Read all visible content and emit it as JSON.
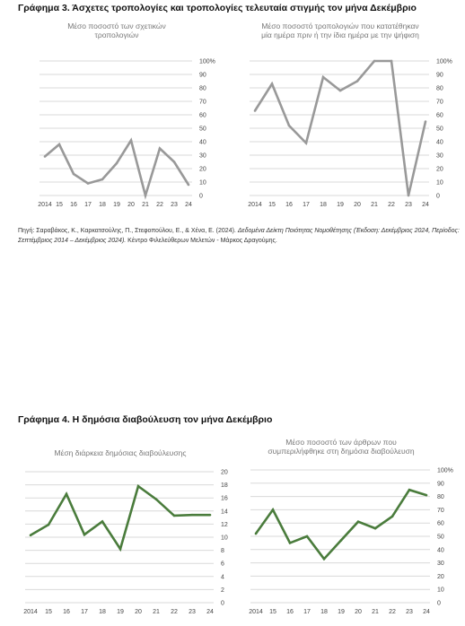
{
  "heading3": "Γράφημα 3. Άσχετες τροπολογίες και τροπολογίες τελευταία στιγμής τον μήνα Δεκέμβριο",
  "source": {
    "prefix": "Πηγή: Σαραβάκος, Κ., Καρκατσούλης, Π., Στεφοπούλου, Ε., & Χένα, Ε. (2024). ",
    "italic": "Δεδομένα Δείκτη Ποιότητας Νομοθέτησης (Έκδοση: Δεκέμβριος 2024, Περίοδος: Σεπτέμβριος 2014 – Δεκέμβριος 2024).",
    "suffix": " Κέντρο Φιλελεύθερων Μελετών - Μάρκος Δραγούμης."
  },
  "heading4": "Γράφημα 4. Η δημόσια διαβούλευση τον μήνα Δεκέμβριο",
  "colors": {
    "gray_line": "#999999",
    "green_line": "#4a7c3c",
    "grid": "#d9d9d9"
  },
  "chart_data": [
    {
      "type": "line",
      "title_lines": [
        "Μέσο ποσοστό των σχετικών",
        "τροπολογιών"
      ],
      "categories": [
        "2014",
        "15",
        "16",
        "17",
        "18",
        "19",
        "20",
        "21",
        "22",
        "23",
        "24"
      ],
      "values": [
        29,
        38,
        16,
        9,
        12,
        24,
        41,
        0,
        35,
        25,
        8
      ],
      "ylim": [
        0,
        100
      ],
      "yticks": [
        "0",
        "10",
        "20",
        "30",
        "40",
        "50",
        "60",
        "70",
        "80",
        "90",
        "100%"
      ],
      "color": "#999999",
      "grid": true
    },
    {
      "type": "line",
      "title_lines": [
        "Μέσο ποσοστό τροπολογιών που κατατέθηκαν",
        "μία ημέρα πριν ή την ίδια ημέρα με την ψήφιση"
      ],
      "categories": [
        "2014",
        "15",
        "16",
        "17",
        "18",
        "19",
        "20",
        "21",
        "22",
        "23",
        "24"
      ],
      "values": [
        63,
        83,
        52,
        39,
        88,
        78,
        85,
        100,
        100,
        0,
        55
      ],
      "ylim": [
        0,
        100
      ],
      "yticks": [
        "0",
        "10",
        "20",
        "30",
        "40",
        "50",
        "60",
        "70",
        "80",
        "90",
        "100%"
      ],
      "color": "#999999",
      "grid": true
    },
    {
      "type": "line",
      "title_lines": [
        "Μέση διάρκεια δημόσιας διαβούλευσης"
      ],
      "categories": [
        "2014",
        "15",
        "16",
        "17",
        "18",
        "19",
        "20",
        "21",
        "22",
        "23",
        "24"
      ],
      "values": [
        10.3,
        11.9,
        16.6,
        10.4,
        12.4,
        8.2,
        17.8,
        15.8,
        13.3,
        13.4,
        13.4
      ],
      "ylim": [
        0,
        20
      ],
      "yticks": [
        "0",
        "2",
        "4",
        "6",
        "8",
        "10",
        "12",
        "14",
        "16",
        "18",
        "20"
      ],
      "color": "#4a7c3c",
      "grid": true
    },
    {
      "type": "line",
      "title_lines": [
        "Μέσο ποσοστό των άρθρων που",
        "συμπεριλήφθηκε στη δημόσια διαβούλευση"
      ],
      "categories": [
        "2014",
        "15",
        "16",
        "17",
        "18",
        "19",
        "20",
        "21",
        "22",
        "23",
        "24"
      ],
      "values": [
        52,
        70,
        45,
        50,
        33,
        47,
        61,
        56,
        65,
        85,
        81
      ],
      "ylim": [
        0,
        100
      ],
      "yticks": [
        "0",
        "10",
        "20",
        "30",
        "40",
        "50",
        "60",
        "70",
        "80",
        "90",
        "100%"
      ],
      "color": "#4a7c3c",
      "grid": true
    }
  ]
}
